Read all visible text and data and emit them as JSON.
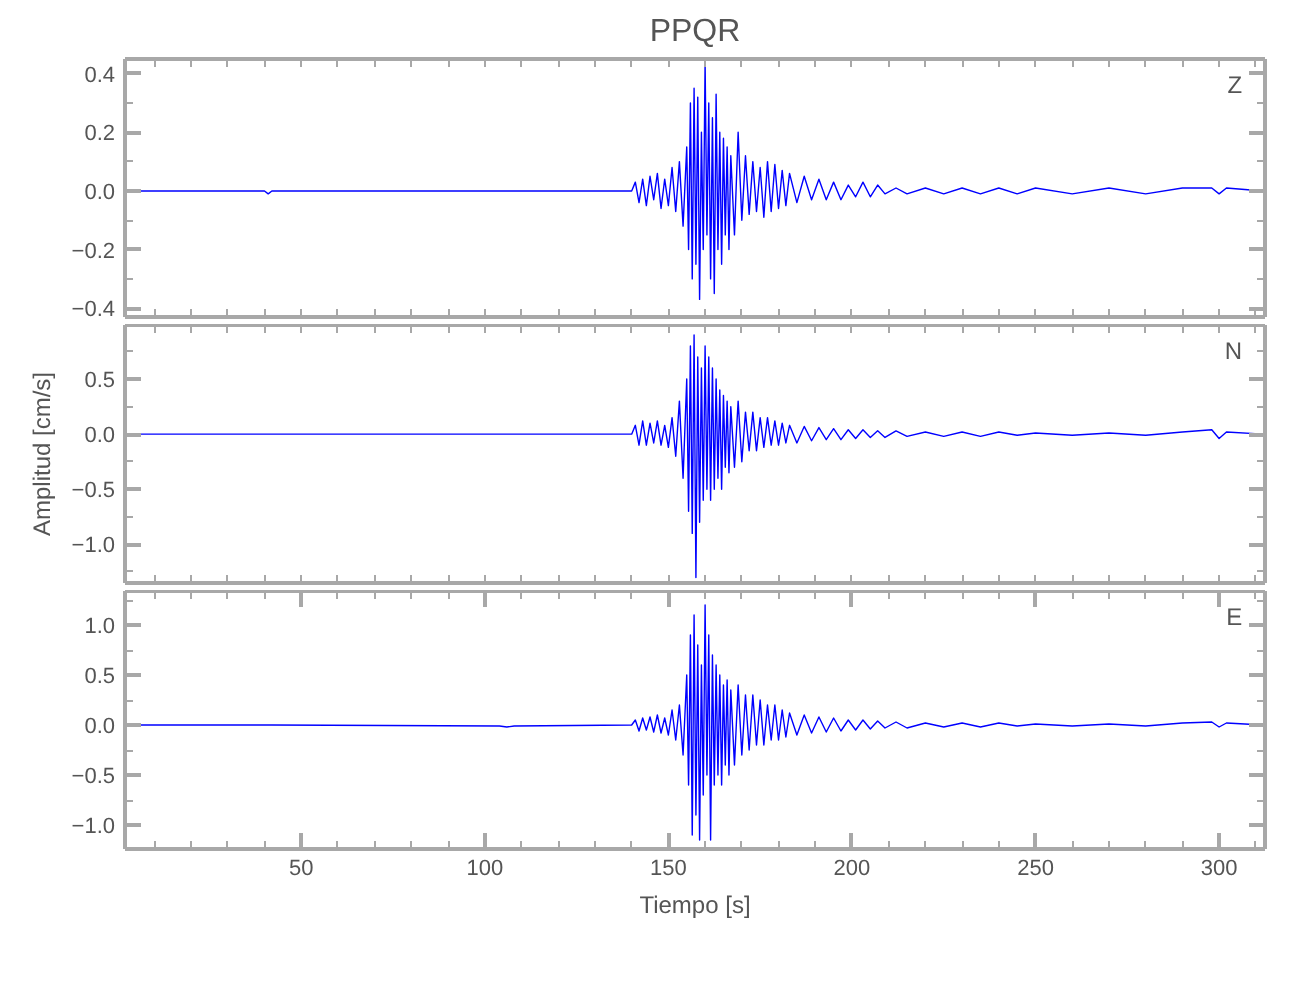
{
  "chart_data": [
    {
      "type": "line",
      "title": "PPQR",
      "annotations": [
        "Z"
      ],
      "tick_labels": "y",
      "xlim": [
        2,
        312.5
      ],
      "ylim": [
        -0.43,
        0.45
      ],
      "xticks": [
        {
          "value": 10,
          "label": null
        },
        {
          "value": 20,
          "label": null
        },
        {
          "value": 30,
          "label": null
        },
        {
          "value": 40,
          "label": null
        },
        {
          "value": 50,
          "label": null
        },
        {
          "value": 60,
          "label": null
        },
        {
          "value": 70,
          "label": null
        },
        {
          "value": 80,
          "label": null
        },
        {
          "value": 90,
          "label": null
        },
        {
          "value": 100,
          "label": null
        },
        {
          "value": 110,
          "label": null
        },
        {
          "value": 120,
          "label": null
        },
        {
          "value": 130,
          "label": null
        },
        {
          "value": 140,
          "label": null
        },
        {
          "value": 150,
          "label": null
        },
        {
          "value": 160,
          "label": null
        },
        {
          "value": 170,
          "label": null
        },
        {
          "value": 180,
          "label": null
        },
        {
          "value": 190,
          "label": null
        },
        {
          "value": 200,
          "label": null
        },
        {
          "value": 210,
          "label": null
        },
        {
          "value": 220,
          "label": null
        },
        {
          "value": 230,
          "label": null
        },
        {
          "value": 240,
          "label": null
        },
        {
          "value": 250,
          "label": null
        },
        {
          "value": 260,
          "label": null
        },
        {
          "value": 270,
          "label": null
        },
        {
          "value": 280,
          "label": null
        },
        {
          "value": 290,
          "label": null
        },
        {
          "value": 300,
          "label": null
        },
        {
          "value": 310,
          "label": null
        }
      ],
      "yticks": [
        {
          "value": -0.4,
          "label": "−0.4"
        },
        {
          "value": -0.3,
          "label": null
        },
        {
          "value": -0.2,
          "label": "−0.2"
        },
        {
          "value": -0.1,
          "label": null
        },
        {
          "value": 0,
          "label": "0.0"
        },
        {
          "value": 0.1,
          "label": null
        },
        {
          "value": 0.2,
          "label": "0.2"
        },
        {
          "value": 0.3,
          "label": null
        },
        {
          "value": 0.4,
          "label": "0.4"
        }
      ],
      "x": [
        2,
        40,
        41,
        42,
        104,
        106,
        108,
        140,
        141,
        142,
        143,
        144,
        145,
        146,
        147,
        148,
        149,
        150,
        151,
        152,
        153,
        154,
        155,
        155.5,
        156,
        156.5,
        157,
        157.5,
        158,
        158.5,
        159,
        159.5,
        160,
        160.5,
        161,
        161.5,
        162,
        162.5,
        163,
        163.5,
        164,
        164.5,
        165,
        165.5,
        166,
        166.5,
        167,
        168,
        169,
        170,
        171,
        172,
        173,
        174,
        175,
        176,
        177,
        178,
        179,
        180,
        181,
        182,
        183,
        185,
        187,
        189,
        191,
        193,
        195,
        197,
        199,
        201,
        203,
        205,
        207,
        209,
        212,
        215,
        220,
        225,
        230,
        235,
        240,
        245,
        250,
        260,
        270,
        280,
        290,
        298,
        300,
        302,
        312
      ],
      "series": [
        {
          "color": "#0000ff",
          "values": [
            0,
            0,
            -0.01,
            0,
            0,
            0,
            0,
            0,
            0.03,
            -0.04,
            0.04,
            -0.05,
            0.05,
            -0.03,
            0.06,
            -0.06,
            0.04,
            -0.05,
            0.08,
            -0.07,
            0.1,
            -0.12,
            0.15,
            -0.2,
            0.3,
            -0.3,
            0.35,
            -0.25,
            0.32,
            -0.37,
            0.2,
            -0.2,
            0.44,
            -0.15,
            0.3,
            -0.3,
            0.25,
            -0.35,
            0.33,
            -0.2,
            0.2,
            -0.25,
            0.18,
            -0.15,
            0.15,
            -0.2,
            0.12,
            -0.15,
            0.2,
            -0.1,
            0.12,
            -0.08,
            0.1,
            -0.07,
            0.08,
            -0.09,
            0.1,
            -0.07,
            0.09,
            -0.06,
            0.07,
            -0.05,
            0.06,
            -0.04,
            0.05,
            -0.03,
            0.04,
            -0.03,
            0.03,
            -0.03,
            0.02,
            -0.02,
            0.03,
            -0.02,
            0.02,
            -0.01,
            0.01,
            -0.01,
            0.01,
            -0.01,
            0.01,
            -0.01,
            0.01,
            -0.01,
            0.01,
            -0.01,
            0.01,
            -0.01,
            0.01,
            0.01,
            -0.01,
            0.01,
            0
          ]
        }
      ]
    },
    {
      "type": "line",
      "ylabel": "Amplitud [cm/s]",
      "annotations": [
        "N"
      ],
      "tick_labels": "y",
      "xlim": [
        2,
        312.5
      ],
      "ylim": [
        -1.35,
        0.99
      ],
      "xticks": [
        {
          "value": 10,
          "label": null
        },
        {
          "value": 20,
          "label": null
        },
        {
          "value": 30,
          "label": null
        },
        {
          "value": 40,
          "label": null
        },
        {
          "value": 50,
          "label": null
        },
        {
          "value": 60,
          "label": null
        },
        {
          "value": 70,
          "label": null
        },
        {
          "value": 80,
          "label": null
        },
        {
          "value": 90,
          "label": null
        },
        {
          "value": 100,
          "label": null
        },
        {
          "value": 110,
          "label": null
        },
        {
          "value": 120,
          "label": null
        },
        {
          "value": 130,
          "label": null
        },
        {
          "value": 140,
          "label": null
        },
        {
          "value": 150,
          "label": null
        },
        {
          "value": 160,
          "label": null
        },
        {
          "value": 170,
          "label": null
        },
        {
          "value": 180,
          "label": null
        },
        {
          "value": 190,
          "label": null
        },
        {
          "value": 200,
          "label": null
        },
        {
          "value": 210,
          "label": null
        },
        {
          "value": 220,
          "label": null
        },
        {
          "value": 230,
          "label": null
        },
        {
          "value": 240,
          "label": null
        },
        {
          "value": 250,
          "label": null
        },
        {
          "value": 260,
          "label": null
        },
        {
          "value": 270,
          "label": null
        },
        {
          "value": 280,
          "label": null
        },
        {
          "value": 290,
          "label": null
        },
        {
          "value": 300,
          "label": null
        },
        {
          "value": 310,
          "label": null
        }
      ],
      "yticks": [
        {
          "value": -1.25,
          "label": null
        },
        {
          "value": -1,
          "label": "−1.0"
        },
        {
          "value": -0.75,
          "label": null
        },
        {
          "value": -0.5,
          "label": "−0.5"
        },
        {
          "value": -0.25,
          "label": null
        },
        {
          "value": 0,
          "label": "0.0"
        },
        {
          "value": 0.25,
          "label": null
        },
        {
          "value": 0.5,
          "label": "0.5"
        },
        {
          "value": 0.75,
          "label": null
        }
      ],
      "x": [
        2,
        40,
        41,
        42,
        104,
        106,
        108,
        140,
        141,
        142,
        143,
        144,
        145,
        146,
        147,
        148,
        149,
        150,
        151,
        152,
        153,
        154,
        155,
        155.5,
        156,
        156.5,
        157,
        157.5,
        158,
        158.5,
        159,
        159.5,
        160,
        160.5,
        161,
        161.5,
        162,
        162.5,
        163,
        163.5,
        164,
        164.5,
        165,
        165.5,
        166,
        166.5,
        167,
        168,
        169,
        170,
        171,
        172,
        173,
        174,
        175,
        176,
        177,
        178,
        179,
        180,
        181,
        182,
        183,
        185,
        187,
        189,
        191,
        193,
        195,
        197,
        199,
        201,
        203,
        205,
        207,
        209,
        212,
        215,
        220,
        225,
        230,
        235,
        240,
        245,
        250,
        260,
        270,
        280,
        290,
        298,
        300,
        302,
        312
      ],
      "series": [
        {
          "color": "#0000ff",
          "values": [
            0,
            0,
            0,
            0,
            0,
            0,
            0,
            0,
            0.08,
            -0.1,
            0.12,
            -0.1,
            0.1,
            -0.08,
            0.12,
            -0.1,
            0.08,
            -0.12,
            0.15,
            -0.2,
            0.3,
            -0.4,
            0.5,
            -0.7,
            0.8,
            -0.9,
            0.9,
            -1.3,
            0.7,
            -0.8,
            0.6,
            -0.6,
            0.8,
            -0.5,
            0.7,
            -0.6,
            0.6,
            -0.5,
            0.5,
            -0.4,
            0.4,
            -0.5,
            0.35,
            -0.3,
            0.3,
            -0.35,
            0.25,
            -0.3,
            0.3,
            -0.25,
            0.2,
            -0.15,
            0.2,
            -0.15,
            0.15,
            -0.12,
            0.15,
            -0.1,
            0.12,
            -0.1,
            0.1,
            -0.08,
            0.08,
            -0.08,
            0.07,
            -0.06,
            0.06,
            -0.05,
            0.05,
            -0.05,
            0.04,
            -0.04,
            0.04,
            -0.03,
            0.03,
            -0.03,
            0.03,
            -0.02,
            0.02,
            -0.02,
            0.02,
            -0.02,
            0.02,
            -0.01,
            0.01,
            -0.01,
            0.01,
            -0.01,
            0.02,
            0.04,
            -0.04,
            0.02,
            0
          ]
        }
      ]
    },
    {
      "type": "line",
      "xlabel": "Tiempo [s]",
      "annotations": [
        "E"
      ],
      "xlim": [
        2,
        312.5
      ],
      "ylim": [
        -1.24,
        1.34
      ],
      "xticks": [
        {
          "value": 10,
          "label": null
        },
        {
          "value": 20,
          "label": null
        },
        {
          "value": 30,
          "label": null
        },
        {
          "value": 40,
          "label": null
        },
        {
          "value": 50,
          "label": "50"
        },
        {
          "value": 60,
          "label": null
        },
        {
          "value": 70,
          "label": null
        },
        {
          "value": 80,
          "label": null
        },
        {
          "value": 90,
          "label": null
        },
        {
          "value": 100,
          "label": "100"
        },
        {
          "value": 110,
          "label": null
        },
        {
          "value": 120,
          "label": null
        },
        {
          "value": 130,
          "label": null
        },
        {
          "value": 140,
          "label": null
        },
        {
          "value": 150,
          "label": "150"
        },
        {
          "value": 160,
          "label": null
        },
        {
          "value": 170,
          "label": null
        },
        {
          "value": 180,
          "label": null
        },
        {
          "value": 190,
          "label": null
        },
        {
          "value": 200,
          "label": "200"
        },
        {
          "value": 210,
          "label": null
        },
        {
          "value": 220,
          "label": null
        },
        {
          "value": 230,
          "label": null
        },
        {
          "value": 240,
          "label": null
        },
        {
          "value": 250,
          "label": "250"
        },
        {
          "value": 260,
          "label": null
        },
        {
          "value": 270,
          "label": null
        },
        {
          "value": 280,
          "label": null
        },
        {
          "value": 290,
          "label": null
        },
        {
          "value": 300,
          "label": "300"
        },
        {
          "value": 310,
          "label": null
        }
      ],
      "yticks": [
        {
          "value": -1,
          "label": "−1.0"
        },
        {
          "value": -0.75,
          "label": null
        },
        {
          "value": -0.5,
          "label": "−0.5"
        },
        {
          "value": -0.25,
          "label": null
        },
        {
          "value": 0,
          "label": "0.0"
        },
        {
          "value": 0.25,
          "label": null
        },
        {
          "value": 0.5,
          "label": "0.5"
        },
        {
          "value": 0.75,
          "label": null
        },
        {
          "value": 1,
          "label": "1.0"
        },
        {
          "value": 1.25,
          "label": null
        }
      ],
      "x": [
        2,
        40,
        41,
        42,
        104,
        106,
        108,
        140,
        141,
        142,
        143,
        144,
        145,
        146,
        147,
        148,
        149,
        150,
        151,
        152,
        153,
        154,
        155,
        155.5,
        156,
        156.5,
        157,
        157.5,
        158,
        158.5,
        159,
        159.5,
        160,
        160.5,
        161,
        161.5,
        162,
        162.5,
        163,
        163.5,
        164,
        164.5,
        165,
        165.5,
        166,
        166.5,
        167,
        168,
        169,
        170,
        171,
        172,
        173,
        174,
        175,
        176,
        177,
        178,
        179,
        180,
        181,
        182,
        183,
        185,
        187,
        189,
        191,
        193,
        195,
        197,
        199,
        201,
        203,
        205,
        207,
        209,
        212,
        215,
        220,
        225,
        230,
        235,
        240,
        245,
        250,
        260,
        270,
        280,
        290,
        298,
        300,
        302,
        312
      ],
      "series": [
        {
          "color": "#0000ff",
          "values": [
            0,
            0,
            0,
            0,
            -0.01,
            -0.02,
            -0.01,
            0,
            0.05,
            -0.06,
            0.07,
            -0.05,
            0.08,
            -0.07,
            0.1,
            -0.08,
            0.07,
            -0.1,
            0.15,
            -0.15,
            0.2,
            -0.3,
            0.5,
            -0.6,
            0.9,
            -1.1,
            1.1,
            -0.9,
            0.8,
            -1.15,
            0.6,
            -0.7,
            1.2,
            -0.5,
            0.9,
            -1.15,
            0.7,
            -0.6,
            0.6,
            -0.5,
            0.5,
            -0.6,
            0.4,
            -0.4,
            0.45,
            -0.5,
            0.35,
            -0.4,
            0.4,
            -0.3,
            0.3,
            -0.25,
            0.3,
            -0.2,
            0.25,
            -0.2,
            0.2,
            -0.15,
            0.2,
            -0.15,
            0.15,
            -0.12,
            0.12,
            -0.1,
            0.1,
            -0.08,
            0.08,
            -0.07,
            0.07,
            -0.06,
            0.05,
            -0.05,
            0.05,
            -0.04,
            0.04,
            -0.03,
            0.03,
            -0.03,
            0.02,
            -0.02,
            0.02,
            -0.02,
            0.02,
            -0.01,
            0.01,
            -0.01,
            0.01,
            -0.01,
            0.02,
            0.03,
            -0.02,
            0.02,
            0
          ]
        }
      ]
    }
  ]
}
